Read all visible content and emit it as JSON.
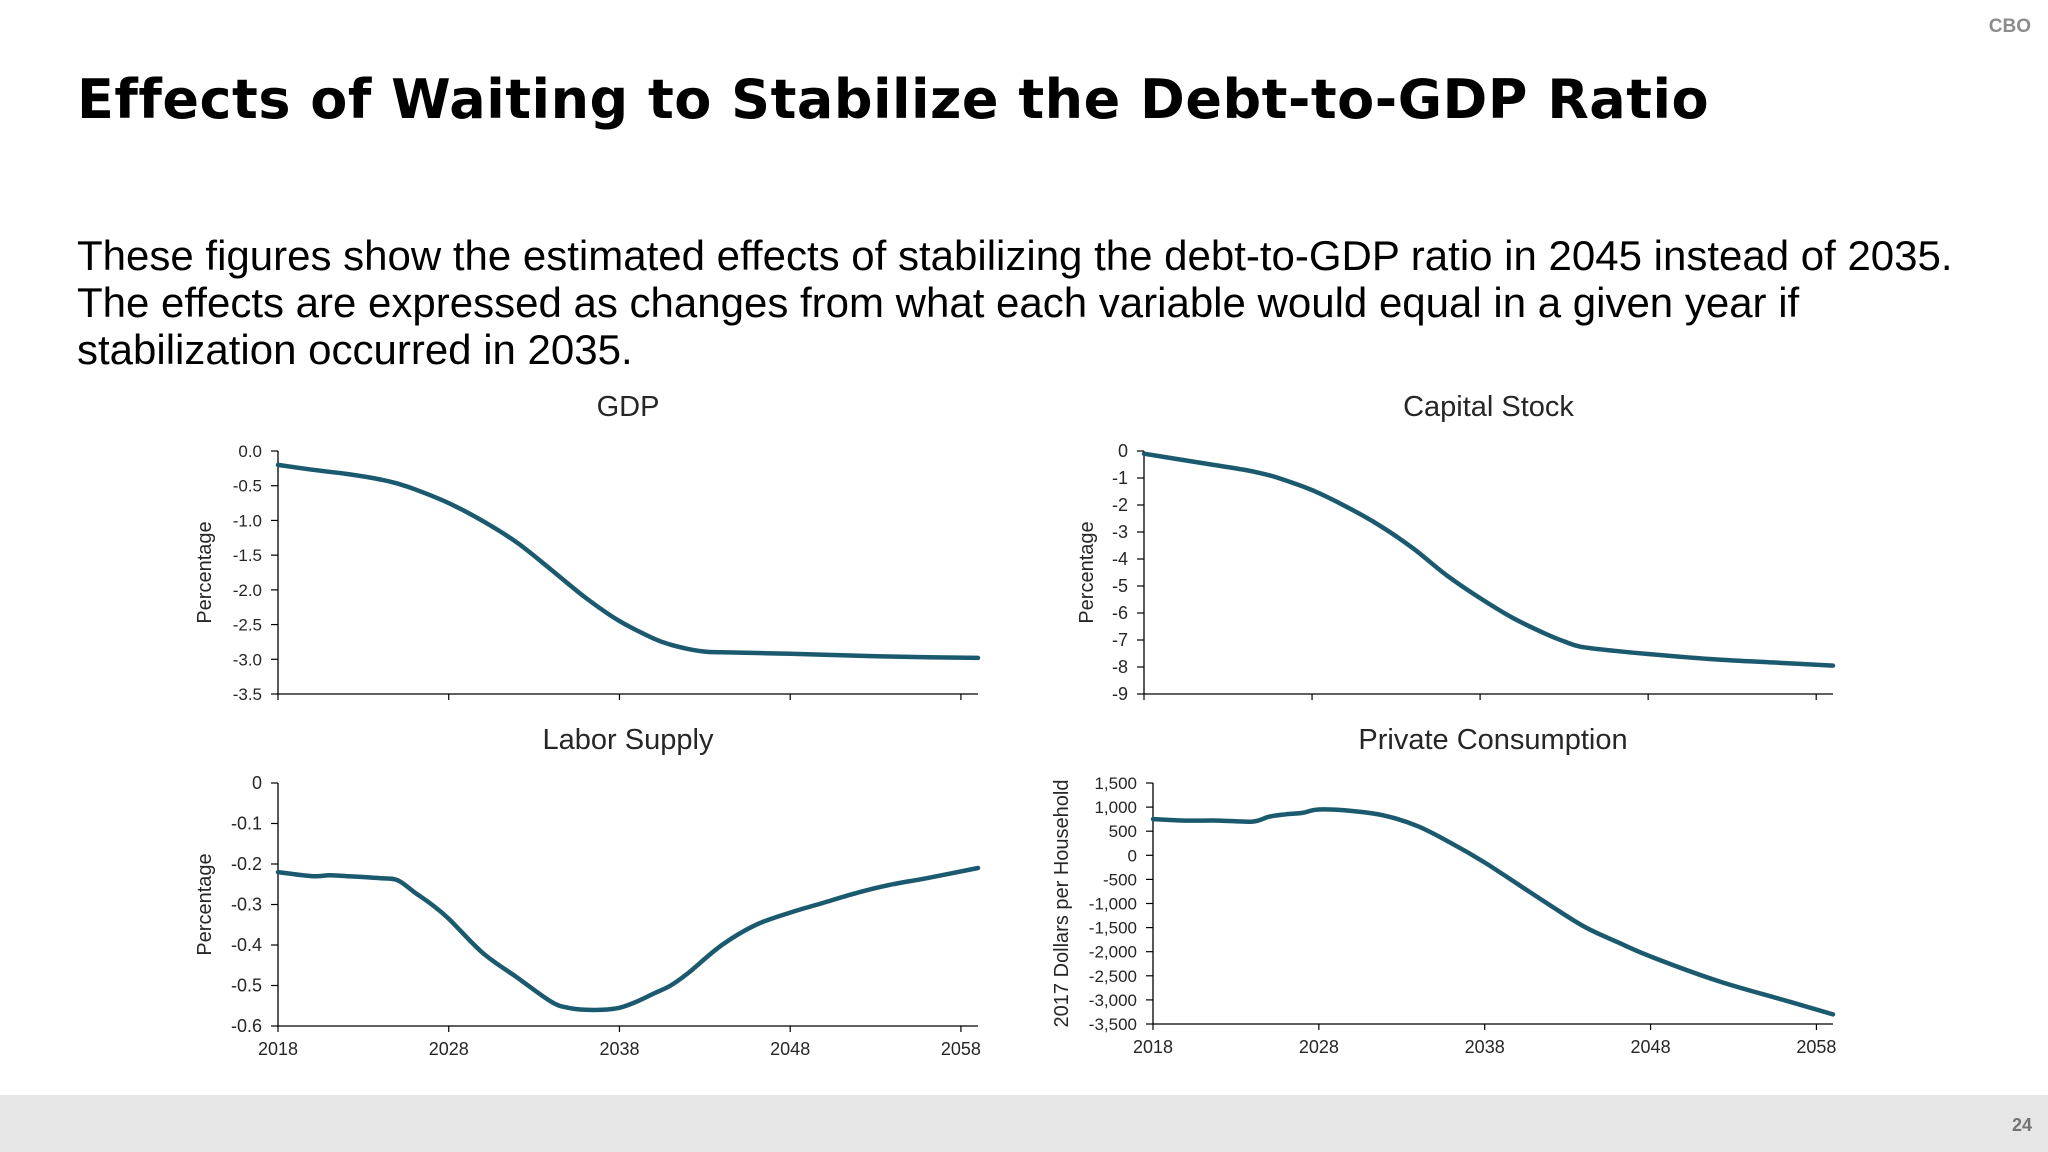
{
  "header": {
    "brand": "CBO"
  },
  "slide": {
    "title": "Effects of Waiting to Stabilize the Debt-to-GDP Ratio",
    "body": "These figures show the estimated effects of stabilizing the debt-to-GDP ratio in 2045 instead of 2035. The effects are expressed as changes from what each variable would equal in a given year if stabilization occurred in 2035."
  },
  "footer": {
    "page_number": "24"
  },
  "colors": {
    "line": "#1b5a6e",
    "axis": "#000000",
    "footer_bg": "#e6e6e6"
  },
  "chart_data": [
    {
      "type": "line",
      "title": "GDP",
      "ylabel": "Percentage",
      "xlim": [
        2018,
        2059
      ],
      "ylim": [
        -3.5,
        0.0
      ],
      "yticks": [
        0.0,
        -0.5,
        -1.0,
        -1.5,
        -2.0,
        -2.5,
        -3.0,
        -3.5
      ],
      "ytick_labels": [
        "0.0",
        "-0.5",
        "-1.0",
        "-1.5",
        "-2.0",
        "-2.5",
        "-3.0",
        "-3.5"
      ],
      "xticks": [
        2018,
        2028,
        2038,
        2048,
        2058
      ],
      "xtick_labels": [],
      "grid": false,
      "series": [
        {
          "x": [
            2018,
            2020,
            2022,
            2024,
            2025,
            2026,
            2028,
            2030,
            2032,
            2034,
            2036,
            2038,
            2040,
            2041,
            2042,
            2043,
            2044,
            2048,
            2052,
            2056,
            2059
          ],
          "y": [
            -0.2,
            -0.27,
            -0.33,
            -0.41,
            -0.47,
            -0.55,
            -0.75,
            -1.01,
            -1.32,
            -1.71,
            -2.11,
            -2.45,
            -2.7,
            -2.79,
            -2.85,
            -2.89,
            -2.9,
            -2.92,
            -2.95,
            -2.97,
            -2.98
          ]
        }
      ]
    },
    {
      "type": "line",
      "title": "Capital Stock",
      "ylabel": "Percentage",
      "xlim": [
        2018,
        2059
      ],
      "ylim": [
        -9,
        0
      ],
      "yticks": [
        0,
        -1,
        -2,
        -3,
        -4,
        -5,
        -6,
        -7,
        -8,
        -9
      ],
      "ytick_labels": [
        "0",
        "-1",
        "-2",
        "-3",
        "-4",
        "-5",
        "-6",
        "-7",
        "-8",
        "-9"
      ],
      "xticks": [
        2018,
        2028,
        2038,
        2048,
        2058
      ],
      "xtick_labels": [],
      "grid": false,
      "series": [
        {
          "x": [
            2018,
            2020,
            2022,
            2024,
            2025,
            2026,
            2028,
            2030,
            2032,
            2034,
            2036,
            2038,
            2040,
            2042,
            2043,
            2044,
            2046,
            2048,
            2052,
            2056,
            2059
          ],
          "y": [
            -0.1,
            -0.3,
            -0.5,
            -0.7,
            -0.83,
            -1.0,
            -1.45,
            -2.05,
            -2.75,
            -3.6,
            -4.6,
            -5.45,
            -6.2,
            -6.8,
            -7.05,
            -7.25,
            -7.4,
            -7.52,
            -7.72,
            -7.85,
            -7.95
          ]
        }
      ]
    },
    {
      "type": "line",
      "title": "Labor Supply",
      "ylabel": "Percentage",
      "xlim": [
        2018,
        2059
      ],
      "ylim": [
        -0.6,
        0
      ],
      "yticks": [
        0,
        -0.1,
        -0.2,
        -0.3,
        -0.4,
        -0.5,
        -0.6
      ],
      "ytick_labels": [
        "0",
        "-0.1",
        "-0.2",
        "-0.3",
        "-0.4",
        "-0.5",
        "-0.6"
      ],
      "xticks": [
        2018,
        2028,
        2038,
        2048,
        2058
      ],
      "xtick_labels": [
        "2018",
        "2028",
        "2038",
        "2048",
        "2058"
      ],
      "grid": false,
      "series": [
        {
          "x": [
            2018,
            2020,
            2021,
            2022,
            2024,
            2025,
            2026,
            2027,
            2028,
            2030,
            2032,
            2034,
            2035,
            2036,
            2037,
            2038,
            2039,
            2040,
            2041,
            2042,
            2044,
            2046,
            2048,
            2050,
            2052,
            2054,
            2056,
            2059
          ],
          "y": [
            -0.22,
            -0.23,
            -0.228,
            -0.23,
            -0.235,
            -0.24,
            -0.27,
            -0.3,
            -0.335,
            -0.42,
            -0.48,
            -0.54,
            -0.555,
            -0.56,
            -0.56,
            -0.555,
            -0.54,
            -0.52,
            -0.5,
            -0.47,
            -0.4,
            -0.35,
            -0.32,
            -0.295,
            -0.27,
            -0.25,
            -0.235,
            -0.21
          ]
        }
      ]
    },
    {
      "type": "line",
      "title": "Private Consumption",
      "ylabel": "2017 Dollars per Household",
      "xlim": [
        2018,
        2059
      ],
      "ylim": [
        -3500,
        1500
      ],
      "yticks": [
        1500,
        1000,
        500,
        0,
        -500,
        -1000,
        -1500,
        -2000,
        -2500,
        -3000,
        -3500
      ],
      "ytick_labels": [
        "1,500",
        "1,000",
        "500",
        "0",
        "-500",
        "-1,000",
        "-1,500",
        "-2,000",
        "-2,500",
        "-3,000",
        "-3,500"
      ],
      "xticks": [
        2018,
        2028,
        2038,
        2048,
        2058
      ],
      "xtick_labels": [
        "2018",
        "2028",
        "2038",
        "2048",
        "2058"
      ],
      "grid": false,
      "series": [
        {
          "x": [
            2018,
            2020,
            2022,
            2024,
            2025,
            2026,
            2027,
            2028,
            2030,
            2032,
            2034,
            2036,
            2038,
            2040,
            2042,
            2044,
            2046,
            2048,
            2052,
            2056,
            2059
          ],
          "y": [
            750,
            720,
            720,
            700,
            800,
            850,
            880,
            950,
            920,
            820,
            600,
            250,
            -150,
            -600,
            -1050,
            -1480,
            -1800,
            -2100,
            -2600,
            -3000,
            -3300
          ]
        }
      ]
    }
  ]
}
